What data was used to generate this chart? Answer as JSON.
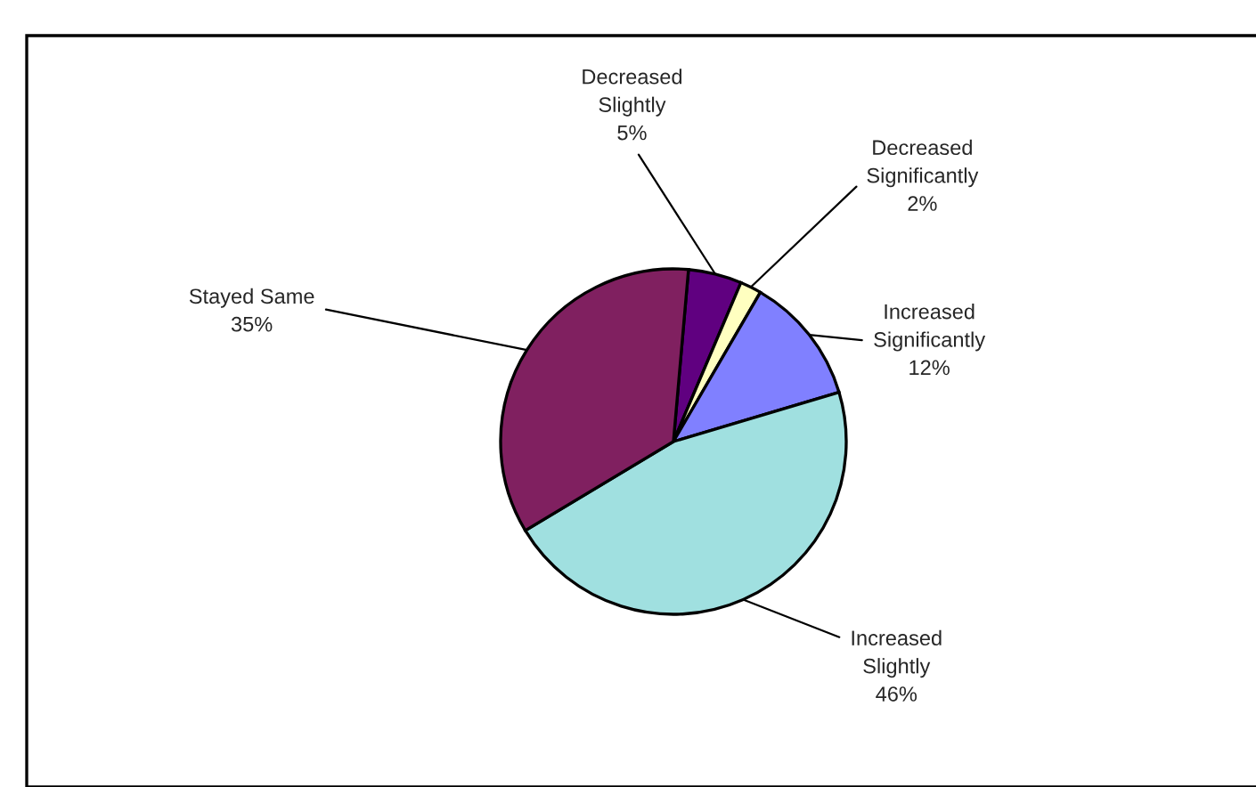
{
  "chart_data": {
    "type": "pie",
    "categories": [
      "Decreased Slightly",
      "Decreased Significantly",
      "Increased Significantly",
      "Increased Slightly",
      "Stayed Same"
    ],
    "values": [
      5,
      2,
      12,
      46,
      35
    ],
    "colors": [
      "#600080",
      "#ffffc0",
      "#8080ff",
      "#a0e0e0",
      "#802060"
    ],
    "value_labels": [
      "5%",
      "2%",
      "12%",
      "46%",
      "35%"
    ]
  }
}
